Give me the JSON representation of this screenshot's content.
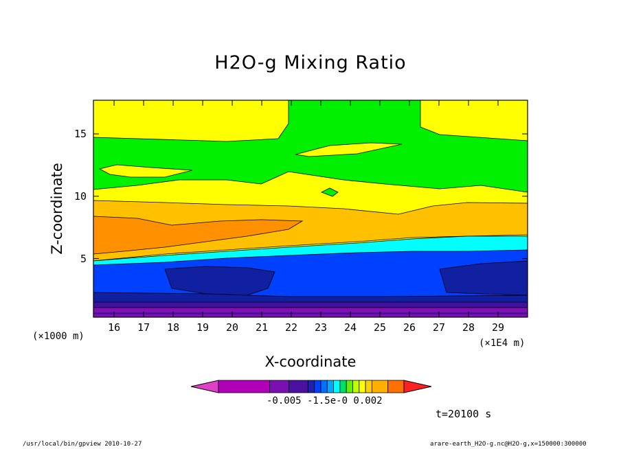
{
  "chart_data": {
    "type": "heatmap",
    "title": "H2O-g Mixing Ratio",
    "xlabel": "X-coordinate",
    "ylabel": "Z-coordinate",
    "x_unit_left": "(×1000 m)",
    "x_unit_right": "(×1E4 m)",
    "xlim": [
      15.3,
      30.0
    ],
    "ylim": [
      0.3,
      17.7
    ],
    "x_ticks": [
      "16",
      "17",
      "18",
      "19",
      "20",
      "21",
      "22",
      "23",
      "24",
      "25",
      "26",
      "27",
      "28",
      "29"
    ],
    "x_tick_values": [
      16,
      17,
      18,
      19,
      20,
      21,
      22,
      23,
      24,
      25,
      26,
      27,
      28,
      29
    ],
    "y_ticks": [
      "5",
      "10",
      "15"
    ],
    "y_tick_values": [
      5,
      10,
      15
    ],
    "colorbar": {
      "labels_text": "-0.005 -1.5e-0 0.002",
      "colors": [
        "#e040c8",
        "#b000b8",
        "#7a10b0",
        "#4a10a0",
        "#2020b0",
        "#0040ff",
        "#0070ff",
        "#00a8ff",
        "#00ffff",
        "#00e060",
        "#60f000",
        "#c0ff00",
        "#ffff00",
        "#ffd000",
        "#ffb000",
        "#ff7000",
        "#ff2020"
      ]
    },
    "bands": [
      {
        "name": "yellow-top",
        "color": "#ffff00"
      },
      {
        "name": "green",
        "color": "#00f000"
      },
      {
        "name": "yellow",
        "color": "#ffff00"
      },
      {
        "name": "gold",
        "color": "#ffc000"
      },
      {
        "name": "orange",
        "color": "#ff9000"
      },
      {
        "name": "cyan",
        "color": "#00ffff"
      },
      {
        "name": "blue",
        "color": "#0040ff"
      },
      {
        "name": "navy",
        "color": "#1020a0"
      },
      {
        "name": "indigo",
        "color": "#4010a0"
      },
      {
        "name": "purple",
        "color": "#8010b0"
      }
    ]
  },
  "time_label": "t=20100 s",
  "footer": {
    "left": "/usr/local/bin/gpview  2010-10-27",
    "right": "arare-earth_H2O-g.nc@H2O-g,x=150000:300000"
  }
}
